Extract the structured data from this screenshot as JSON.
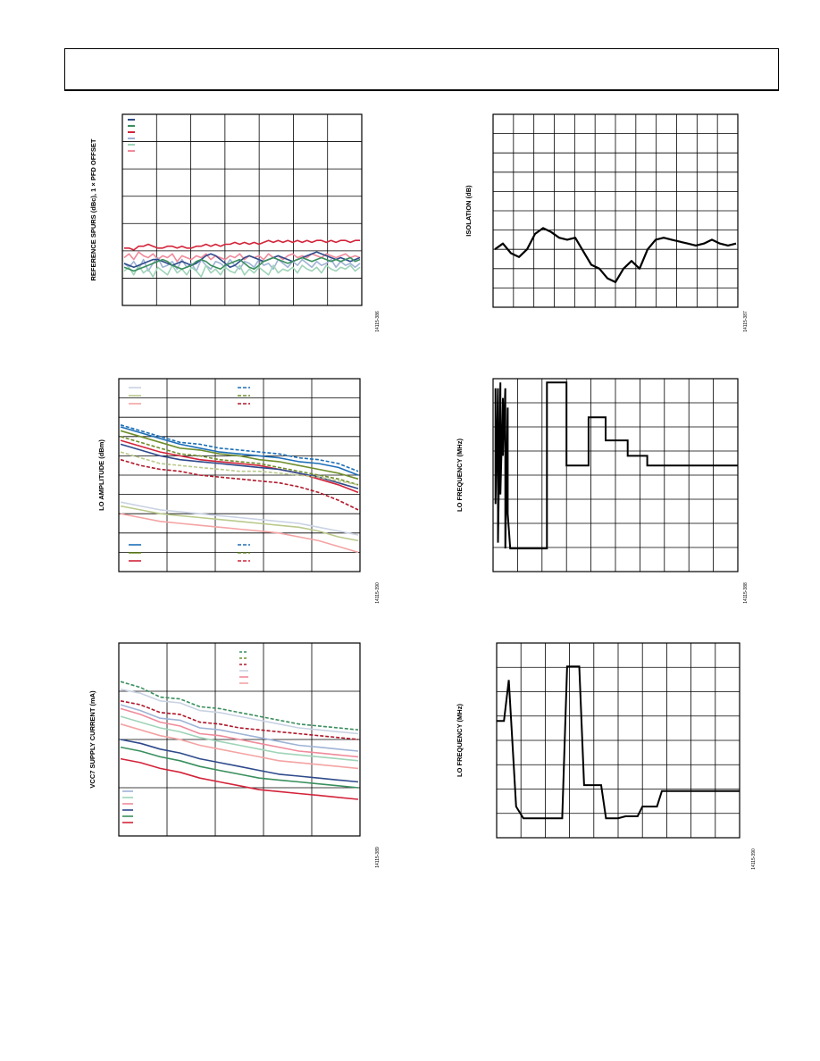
{
  "page": {
    "header_text": ""
  },
  "colors": {
    "grid": "#000000",
    "blue": "#2e4a8c",
    "lightblue": "#9fb3d6",
    "red": "#d3243a",
    "green": "#3a8f5e",
    "lightgreen": "#9fd4b8",
    "pink": "#f08a9a",
    "cyan": "#1d6fb8",
    "olive": "#6f8f2d",
    "lightolive": "#b9c98b",
    "darkred": "#b0182a",
    "salmon": "#f4a3a3",
    "lightgray": "#c9d2e3",
    "trace": "#000000"
  },
  "chart_data": [
    {
      "id": "fig-ref-spurs",
      "type": "line",
      "ylabel": "REFERENCE SPURS (dBc), 1 × PFD OFFSET",
      "figure_id": "14115-386",
      "grid": true,
      "legend": "top-left",
      "xlim": [
        0,
        100
      ],
      "ylim": [
        0,
        100
      ],
      "series": [
        {
          "color": "red",
          "y": [
            30,
            30,
            29,
            31,
            31,
            32,
            31,
            30,
            30,
            31,
            31,
            30,
            31,
            30,
            30,
            31,
            31,
            32,
            31,
            32,
            31,
            32,
            32,
            33,
            32,
            33,
            32,
            33,
            32,
            33,
            34,
            33,
            34,
            33,
            34,
            33,
            34,
            33,
            34,
            33,
            34,
            34,
            33,
            34,
            33,
            34,
            34,
            33,
            34,
            34
          ]
        },
        {
          "color": "pink",
          "y": [
            25,
            27,
            24,
            28,
            26,
            25,
            27,
            24,
            26,
            25,
            27,
            23,
            26,
            25,
            24,
            26,
            25,
            27,
            24,
            26,
            25,
            24,
            26,
            25,
            27,
            24,
            26,
            25,
            26,
            24,
            27,
            25,
            26,
            24,
            26,
            27,
            25,
            26,
            25,
            27,
            26,
            25,
            27,
            26,
            25,
            26,
            27,
            25,
            26,
            25
          ]
        },
        {
          "color": "lightblue",
          "y": [
            22,
            20,
            23,
            19,
            24,
            18,
            22,
            25,
            20,
            21,
            23,
            19,
            24,
            20,
            22,
            18,
            24,
            21,
            19,
            23,
            22,
            20,
            24,
            21,
            19,
            23,
            22,
            20,
            24,
            21,
            22,
            19,
            24,
            22,
            20,
            23,
            21,
            24,
            22,
            20,
            23,
            21,
            22,
            24,
            20,
            23,
            21,
            22,
            20,
            22
          ]
        },
        {
          "color": "lightgreen",
          "y": [
            18,
            20,
            16,
            21,
            17,
            19,
            15,
            20,
            18,
            16,
            21,
            17,
            19,
            16,
            20,
            18,
            15,
            21,
            17,
            19,
            16,
            20,
            18,
            17,
            21,
            16,
            19,
            17,
            20,
            18,
            16,
            21,
            17,
            19,
            18,
            20,
            17,
            21,
            19,
            18,
            20,
            17,
            21,
            19,
            18,
            20,
            19,
            21,
            18,
            20
          ]
        },
        {
          "color": "blue",
          "y": [
            22,
            21,
            20,
            21,
            22,
            23,
            24,
            24,
            23,
            22,
            21,
            22,
            23,
            22,
            21,
            22,
            24,
            26,
            27,
            26,
            24,
            22,
            20,
            21,
            23,
            25,
            26,
            25,
            24,
            23,
            24,
            25,
            26,
            25,
            24,
            23,
            24,
            25,
            26,
            27,
            28,
            27,
            26,
            25,
            24,
            25,
            24,
            23,
            24,
            25
          ]
        },
        {
          "color": "green",
          "y": [
            20,
            19,
            18,
            19,
            20,
            21,
            22,
            23,
            24,
            23,
            21,
            20,
            19,
            20,
            21,
            23,
            24,
            23,
            21,
            20,
            19,
            21,
            22,
            23,
            24,
            22,
            20,
            19,
            21,
            23,
            24,
            25,
            24,
            23,
            22,
            23,
            24,
            25,
            24,
            23,
            24,
            25,
            24,
            23,
            24,
            23,
            24,
            25,
            23,
            24
          ]
        }
      ],
      "legend_entries": [
        "blue",
        "green",
        "red",
        "lightblue",
        "lightgreen",
        "pink"
      ]
    },
    {
      "id": "fig-isolation",
      "type": "line",
      "ylabel": "ISOLATION (dB)",
      "figure_id": "14115-387",
      "grid": true,
      "xlim": [
        0,
        100
      ],
      "ylim": [
        0,
        100
      ],
      "series": [
        {
          "color": "trace",
          "y": [
            30,
            33,
            28,
            26,
            30,
            38,
            41,
            39,
            36,
            35,
            36,
            29,
            22,
            20,
            15,
            13,
            20,
            24,
            20,
            30,
            35,
            36,
            35,
            34,
            33,
            32,
            33,
            35,
            33,
            32,
            33
          ]
        }
      ]
    },
    {
      "id": "fig-lo-amplitude",
      "type": "line",
      "ylabel": "LO AMPLITUDE (dBm)",
      "figure_id": "14115-390",
      "grid": true,
      "legend": "top and bottom",
      "xlim": [
        0,
        100
      ],
      "ylim": [
        0,
        100
      ],
      "series": [
        {
          "color": "cyan",
          "style": "dash",
          "y": [
            76,
            73,
            70,
            67,
            66,
            64,
            63,
            62,
            61,
            59,
            58,
            56,
            52
          ]
        },
        {
          "color": "cyan",
          "style": "solid",
          "y": [
            75,
            72,
            69,
            66,
            64,
            62,
            61,
            60,
            59,
            57,
            56,
            54,
            50
          ]
        },
        {
          "color": "olive",
          "style": "solid",
          "y": [
            73,
            70,
            67,
            64,
            63,
            61,
            60,
            58,
            57,
            55,
            53,
            51,
            48
          ]
        },
        {
          "color": "olive",
          "style": "dash",
          "y": [
            70,
            67,
            64,
            61,
            60,
            58,
            57,
            56,
            54,
            52,
            50,
            48,
            45
          ]
        },
        {
          "color": "red",
          "style": "solid",
          "y": [
            68,
            65,
            62,
            60,
            58,
            57,
            56,
            55,
            53,
            51,
            48,
            45,
            41
          ]
        },
        {
          "color": "blue",
          "style": "solid",
          "y": [
            66,
            63,
            60,
            58,
            57,
            56,
            55,
            54,
            53,
            51,
            49,
            46,
            43
          ]
        },
        {
          "color": "lightolive",
          "style": "dash",
          "y": [
            62,
            59,
            56,
            55,
            54,
            53,
            52,
            52,
            51,
            50,
            49,
            47,
            45
          ]
        },
        {
          "color": "darkred",
          "style": "dash",
          "y": [
            58,
            55,
            53,
            52,
            50,
            49,
            48,
            47,
            46,
            44,
            41,
            37,
            32
          ]
        },
        {
          "color": "lightgray",
          "style": "solid",
          "y": [
            36,
            34,
            32,
            31,
            30,
            29,
            28,
            27,
            26,
            25,
            23,
            21,
            19
          ]
        },
        {
          "color": "lightolive",
          "style": "solid",
          "y": [
            34,
            32,
            30,
            29,
            28,
            27,
            26,
            25,
            24,
            23,
            21,
            18,
            16
          ]
        },
        {
          "color": "salmon",
          "style": "solid",
          "y": [
            30,
            28,
            26,
            25,
            24,
            23,
            22,
            21,
            20,
            18,
            16,
            13,
            10
          ]
        }
      ]
    },
    {
      "id": "fig-lo-freq-1",
      "type": "line",
      "ylabel": "LO FREQUENCY (MHz)",
      "figure_id": "14115-388",
      "grid": true,
      "xlim": [
        0,
        100
      ],
      "ylim": [
        0,
        100
      ],
      "points": [
        [
          1,
          95
        ],
        [
          1,
          35
        ],
        [
          2,
          95
        ],
        [
          2,
          15
        ],
        [
          3,
          98
        ],
        [
          3,
          40
        ],
        [
          4,
          90
        ],
        [
          4,
          60
        ],
        [
          5,
          95
        ],
        [
          5,
          12
        ],
        [
          6,
          85
        ],
        [
          6,
          30
        ],
        [
          7,
          12
        ],
        [
          20,
          12
        ],
        [
          22,
          12
        ],
        [
          22,
          98
        ],
        [
          28,
          98
        ],
        [
          30,
          98
        ],
        [
          30,
          55
        ],
        [
          37,
          55
        ],
        [
          39,
          55
        ],
        [
          39,
          80
        ],
        [
          46,
          80
        ],
        [
          46,
          68
        ],
        [
          55,
          68
        ],
        [
          55,
          60
        ],
        [
          63,
          60
        ],
        [
          63,
          55
        ],
        [
          100,
          55
        ]
      ]
    },
    {
      "id": "fig-supply-current",
      "type": "line",
      "ylabel": "VCC7 SUPPLY CURRENT (mA)",
      "figure_id": "14115-389",
      "grid": true,
      "legend": "top-right and bottom-left",
      "xlim": [
        0,
        100
      ],
      "ylim": [
        0,
        100
      ],
      "series": [
        {
          "color": "green",
          "style": "dash",
          "y": [
            80,
            77,
            72,
            71,
            67,
            66,
            64,
            62,
            60,
            58,
            57,
            56,
            55
          ]
        },
        {
          "color": "lightgray",
          "style": "solid",
          "y": [
            76,
            74,
            70,
            69,
            65,
            64,
            62,
            60,
            58,
            56,
            55,
            54,
            53
          ]
        },
        {
          "color": "darkred",
          "style": "dash",
          "y": [
            70,
            68,
            64,
            63,
            59,
            58,
            56,
            55,
            54,
            53,
            52,
            51,
            50
          ]
        },
        {
          "color": "lightblue",
          "style": "solid",
          "y": [
            68,
            65,
            61,
            60,
            56,
            55,
            53,
            51,
            49,
            47,
            46,
            45,
            44
          ]
        },
        {
          "color": "pink",
          "style": "solid",
          "y": [
            66,
            63,
            59,
            57,
            53,
            52,
            50,
            48,
            46,
            44,
            43,
            42,
            41
          ]
        },
        {
          "color": "lightgreen",
          "style": "solid",
          "y": [
            62,
            59,
            56,
            54,
            51,
            49,
            47,
            45,
            43,
            42,
            41,
            40,
            39
          ]
        },
        {
          "color": "salmon",
          "style": "solid",
          "y": [
            58,
            55,
            52,
            50,
            47,
            45,
            43,
            41,
            39,
            38,
            37,
            36,
            35
          ]
        },
        {
          "color": "blue",
          "style": "solid",
          "y": [
            50,
            48,
            45,
            43,
            40,
            38,
            36,
            34,
            32,
            31,
            30,
            29,
            28
          ]
        },
        {
          "color": "green",
          "style": "solid",
          "y": [
            46,
            44,
            41,
            39,
            36,
            34,
            32,
            30,
            29,
            28,
            27,
            26,
            25
          ]
        },
        {
          "color": "red",
          "style": "solid",
          "y": [
            40,
            38,
            35,
            33,
            30,
            28,
            26,
            24,
            23,
            22,
            21,
            20,
            19
          ]
        }
      ]
    },
    {
      "id": "fig-lo-freq-2",
      "type": "line",
      "ylabel": "LO FREQUENCY (MHz)",
      "figure_id": "14115-390",
      "grid": true,
      "xlim": [
        0,
        100
      ],
      "ylim": [
        0,
        100
      ],
      "points": [
        [
          0,
          60
        ],
        [
          3,
          60
        ],
        [
          5,
          81
        ],
        [
          8,
          16
        ],
        [
          11,
          10
        ],
        [
          27,
          10
        ],
        [
          29,
          88
        ],
        [
          32,
          88
        ],
        [
          34,
          88
        ],
        [
          36,
          27
        ],
        [
          43,
          27
        ],
        [
          45,
          10
        ],
        [
          50,
          10
        ],
        [
          53,
          11
        ],
        [
          58,
          11
        ],
        [
          60,
          16
        ],
        [
          66,
          16
        ],
        [
          68,
          24
        ],
        [
          100,
          24
        ]
      ]
    }
  ]
}
